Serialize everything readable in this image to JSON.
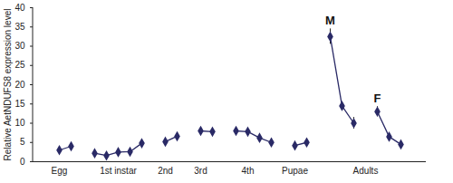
{
  "chart_data": {
    "type": "line",
    "y_label": "Relative AetNDUFS8 expression level",
    "categories": [
      "Egg",
      null,
      null,
      null,
      null,
      "1st instar",
      null,
      null,
      null,
      "2nd",
      null,
      null,
      "3rd",
      null,
      null,
      null,
      "4th",
      null,
      null,
      null,
      "Pupae",
      null,
      null,
      null,
      null,
      null,
      "Adults",
      null,
      null,
      null
    ],
    "series": [
      {
        "name": "AetNDUFS8",
        "color": "#2a2a66",
        "marker": "diamond",
        "line_style": "solid",
        "values": [
          3.0,
          4.0,
          null,
          2.2,
          1.6,
          2.5,
          2.6,
          4.8,
          null,
          5.2,
          6.6,
          null,
          8.0,
          7.8,
          null,
          8.0,
          7.8,
          6.2,
          5.0,
          null,
          4.2,
          5.0,
          null,
          32.5,
          14.5,
          10.0,
          null,
          13.0,
          6.5,
          4.5
        ],
        "errors": [
          0.5,
          0.4,
          null,
          0.3,
          0.3,
          0.3,
          0.3,
          0.4,
          null,
          0.4,
          0.4,
          null,
          0.6,
          0.5,
          null,
          0.7,
          0.8,
          0.6,
          0.5,
          null,
          0.3,
          0.5,
          null,
          2.0,
          0.5,
          1.5,
          null,
          1.3,
          0.3,
          0.3
        ],
        "point_labels": [
          null,
          null,
          null,
          null,
          null,
          null,
          null,
          null,
          null,
          null,
          null,
          null,
          null,
          null,
          null,
          null,
          null,
          null,
          null,
          null,
          null,
          null,
          null,
          "M",
          null,
          null,
          null,
          "F",
          null,
          null
        ]
      }
    ],
    "ylim": [
      0,
      40
    ],
    "yticks": [
      0,
      5,
      10,
      15,
      20,
      25,
      30,
      35,
      40
    ],
    "grid": false
  }
}
